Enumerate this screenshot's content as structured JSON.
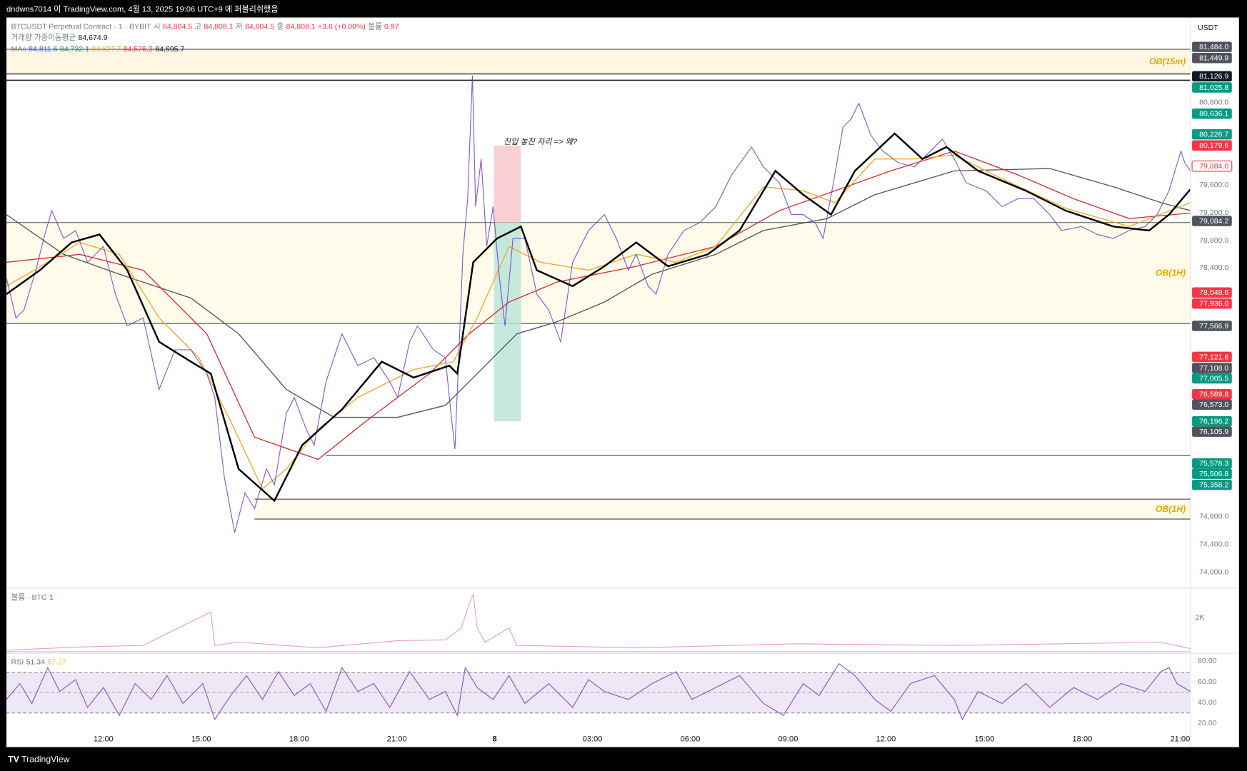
{
  "header": {
    "publish": "dndwns7014 이 TradingView.com, 4월 13, 2025 19:06 UTC+9 에 퍼블리쉬했음"
  },
  "legend": {
    "symbol": "BTCUSDT Perpetual Contract · 1 · BYBIT",
    "ohlc": [
      {
        "label": "시",
        "value": "84,804.5"
      },
      {
        "label": "고",
        "value": "84,808.1"
      },
      {
        "label": "저",
        "value": "84,804.5"
      },
      {
        "label": "종",
        "value": "84,808.1"
      }
    ],
    "change": "+3.6 (+0.00%)",
    "volume_label": "볼륨",
    "volume_value": "0.97",
    "vwma_label": "거래량 가중이동평균",
    "vwma_value": "84,674.9",
    "mas_label": "MAs",
    "mas": [
      {
        "value": "84,811.6",
        "color": "#2962ff"
      },
      {
        "value": "84,732.1",
        "color": "#089981"
      },
      {
        "value": "84,627.7",
        "color": "#f5a623"
      },
      {
        "value": "84,576.3",
        "color": "#f23645"
      },
      {
        "value": "84,695.7",
        "color": "#131722"
      }
    ]
  },
  "annotation": "진입 놓친 자리 => 왜?",
  "zones": [
    "OB(15m)",
    "OB(1H)",
    "OB(1H)"
  ],
  "price_axis": {
    "currency": "USDT",
    "labels": [
      "80,800.0",
      "79,600.0",
      "79,200.0",
      "78,800.0",
      "78,400.0",
      "74,800.0",
      "74,400.0",
      "74,000.0"
    ],
    "tags": [
      {
        "label": "81,484.0",
        "color": "#50535e"
      },
      {
        "label": "81,449.9",
        "color": "#50535e"
      },
      {
        "label": "81,126.9",
        "color": "#131722"
      },
      {
        "label": "81,025.8",
        "color": "#089981"
      },
      {
        "label": "80,636.1",
        "color": "#089981"
      },
      {
        "label": "80,226.7",
        "color": "#089981"
      },
      {
        "label": "80,179.6",
        "color": "#f23645"
      },
      {
        "label": "79,884.0",
        "color": "#ffffff"
      },
      {
        "label": "79,084.2",
        "color": "#50535e"
      },
      {
        "label": "78,048.6",
        "color": "#f23645"
      },
      {
        "label": "77,936.0",
        "color": "#f23645"
      },
      {
        "label": "77,566.9",
        "color": "#50535e"
      },
      {
        "label": "77,121.6",
        "color": "#f23645"
      },
      {
        "label": "77,108.0",
        "color": "#50535e"
      },
      {
        "label": "77,005.5",
        "color": "#089981"
      },
      {
        "label": "76,589.8",
        "color": "#f23645"
      },
      {
        "label": "76,573.0",
        "color": "#50535e"
      },
      {
        "label": "76,196.2",
        "color": "#089981"
      },
      {
        "label": "76,105.9",
        "color": "#50535e"
      },
      {
        "label": "75,578.3",
        "color": "#089981"
      },
      {
        "label": "75,506.8",
        "color": "#089981"
      },
      {
        "label": "75,358.2",
        "color": "#089981"
      }
    ]
  },
  "volume_pane": {
    "label": "볼륨 · BTC",
    "value": "1",
    "axis": "2K"
  },
  "rsi_pane": {
    "label": "RSI",
    "value": "51.34",
    "signal": "57.27",
    "axis": [
      "80.00",
      "60.00",
      "40.00",
      "20.00"
    ]
  },
  "time_axis": [
    "12:00",
    "15:00",
    "18:00",
    "21:00",
    "8",
    "03:00",
    "06:00",
    "09:00",
    "12:00",
    "15:00",
    "18:00",
    "21:00"
  ],
  "footer": {
    "brand": "TradingView"
  }
}
